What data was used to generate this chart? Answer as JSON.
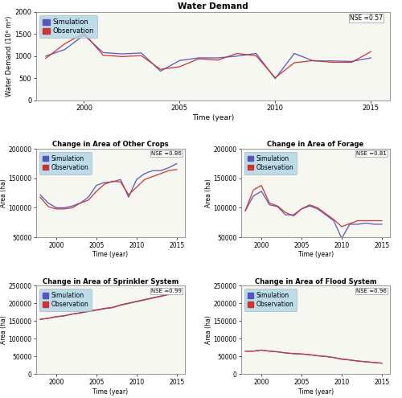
{
  "water_demand": {
    "title": "Water Demand",
    "xlabel": "Time (year)",
    "ylabel": "Water Demand (10⁶ m³)",
    "nse": "NSE =0.57",
    "years": [
      1998,
      1999,
      2000,
      2001,
      2002,
      2003,
      2004,
      2005,
      2006,
      2007,
      2008,
      2009,
      2010,
      2011,
      2012,
      2013,
      2014,
      2015
    ],
    "sim": [
      1000,
      1150,
      1480,
      1080,
      1050,
      1070,
      660,
      900,
      960,
      960,
      1000,
      1060,
      490,
      1060,
      890,
      890,
      880,
      960
    ],
    "obs": [
      950,
      1280,
      1520,
      1020,
      990,
      1010,
      700,
      760,
      940,
      910,
      1060,
      1010,
      510,
      850,
      900,
      860,
      860,
      1100
    ],
    "ylim": [
      0,
      2000
    ],
    "yticks": [
      0,
      500,
      1000,
      1500,
      2000
    ],
    "xticks": [
      2000,
      2005,
      2010,
      2015
    ]
  },
  "other_crops": {
    "title": "Change in Area of Other Crops",
    "xlabel": "Time (year)",
    "ylabel": "Area (ha)",
    "nse": "NSE =0.86",
    "years": [
      1998,
      1999,
      2000,
      2001,
      2002,
      2003,
      2004,
      2005,
      2006,
      2007,
      2008,
      2009,
      2010,
      2011,
      2012,
      2013,
      2014,
      2015
    ],
    "sim": [
      122000,
      108000,
      100000,
      100000,
      103000,
      108000,
      118000,
      138000,
      143000,
      144000,
      148000,
      118000,
      148000,
      158000,
      163000,
      163000,
      168000,
      175000
    ],
    "obs": [
      118000,
      102000,
      98000,
      98000,
      100000,
      108000,
      113000,
      128000,
      140000,
      145000,
      144000,
      122000,
      135000,
      148000,
      153000,
      158000,
      163000,
      165000
    ],
    "ylim": [
      50000,
      200000
    ],
    "yticks": [
      50000,
      100000,
      150000,
      200000
    ],
    "xticks": [
      2000,
      2005,
      2010,
      2015
    ]
  },
  "forage": {
    "title": "Change in Area of Forage",
    "xlabel": "Time (year)",
    "ylabel": "Area (ha)",
    "nse": "NSE =0.81",
    "years": [
      1998,
      1999,
      2000,
      2001,
      2002,
      2003,
      2004,
      2005,
      2006,
      2007,
      2008,
      2009,
      2010,
      2011,
      2012,
      2013,
      2014,
      2015
    ],
    "sim": [
      95000,
      120000,
      128000,
      105000,
      102000,
      88000,
      88000,
      98000,
      103000,
      98000,
      88000,
      78000,
      48000,
      72000,
      72000,
      74000,
      72000,
      72000
    ],
    "obs": [
      95000,
      130000,
      138000,
      108000,
      103000,
      92000,
      86000,
      98000,
      105000,
      100000,
      90000,
      80000,
      68000,
      73000,
      78000,
      78000,
      78000,
      78000
    ],
    "ylim": [
      50000,
      200000
    ],
    "yticks": [
      50000,
      100000,
      150000,
      200000
    ],
    "xticks": [
      2000,
      2005,
      2010,
      2015
    ]
  },
  "sprinkler": {
    "title": "Change in Area of Sprinkler System",
    "xlabel": "Time (year)",
    "ylabel": "Area (ha)",
    "nse": "NSE =0.99",
    "years": [
      1998,
      1999,
      2000,
      2001,
      2002,
      2003,
      2004,
      2005,
      2006,
      2007,
      2008,
      2009,
      2010,
      2011,
      2012,
      2013,
      2014,
      2015
    ],
    "sim": [
      155000,
      158000,
      162000,
      165000,
      170000,
      173000,
      177000,
      181000,
      185000,
      188000,
      195000,
      200000,
      205000,
      210000,
      215000,
      220000,
      225000,
      231000
    ],
    "obs": [
      155000,
      158000,
      163000,
      165000,
      170000,
      174000,
      178000,
      182000,
      186000,
      189000,
      196000,
      201000,
      206000,
      211000,
      216000,
      221000,
      226000,
      232000
    ],
    "ylim": [
      0,
      250000
    ],
    "yticks": [
      0,
      50000,
      100000,
      150000,
      200000,
      250000
    ],
    "xticks": [
      2000,
      2005,
      2010,
      2015
    ]
  },
  "flood": {
    "title": "Change in Area of Flood System",
    "xlabel": "Time (year)",
    "ylabel": "Area (ha)",
    "nse": "NSE =0.96",
    "years": [
      1998,
      1999,
      2000,
      2001,
      2002,
      2003,
      2004,
      2005,
      2006,
      2007,
      2008,
      2009,
      2010,
      2011,
      2012,
      2013,
      2014,
      2015
    ],
    "sim": [
      65000,
      65000,
      68000,
      65000,
      63000,
      60000,
      58000,
      57000,
      55000,
      52000,
      50000,
      47000,
      42000,
      40000,
      37000,
      35000,
      33000,
      31000
    ],
    "obs": [
      65000,
      65000,
      68000,
      65000,
      63000,
      60000,
      58000,
      57000,
      55000,
      52000,
      50000,
      47000,
      43000,
      40000,
      37000,
      35000,
      33000,
      31000
    ],
    "ylim": [
      0,
      250000
    ],
    "yticks": [
      0,
      50000,
      100000,
      150000,
      200000,
      250000
    ],
    "xticks": [
      2000,
      2005,
      2010,
      2015
    ]
  },
  "sim_color": "#5555bb",
  "obs_color": "#cc3333",
  "legend_bg": "#aed6e8",
  "bg_color": "#ffffff",
  "axis_bg": "#f7f7f2"
}
